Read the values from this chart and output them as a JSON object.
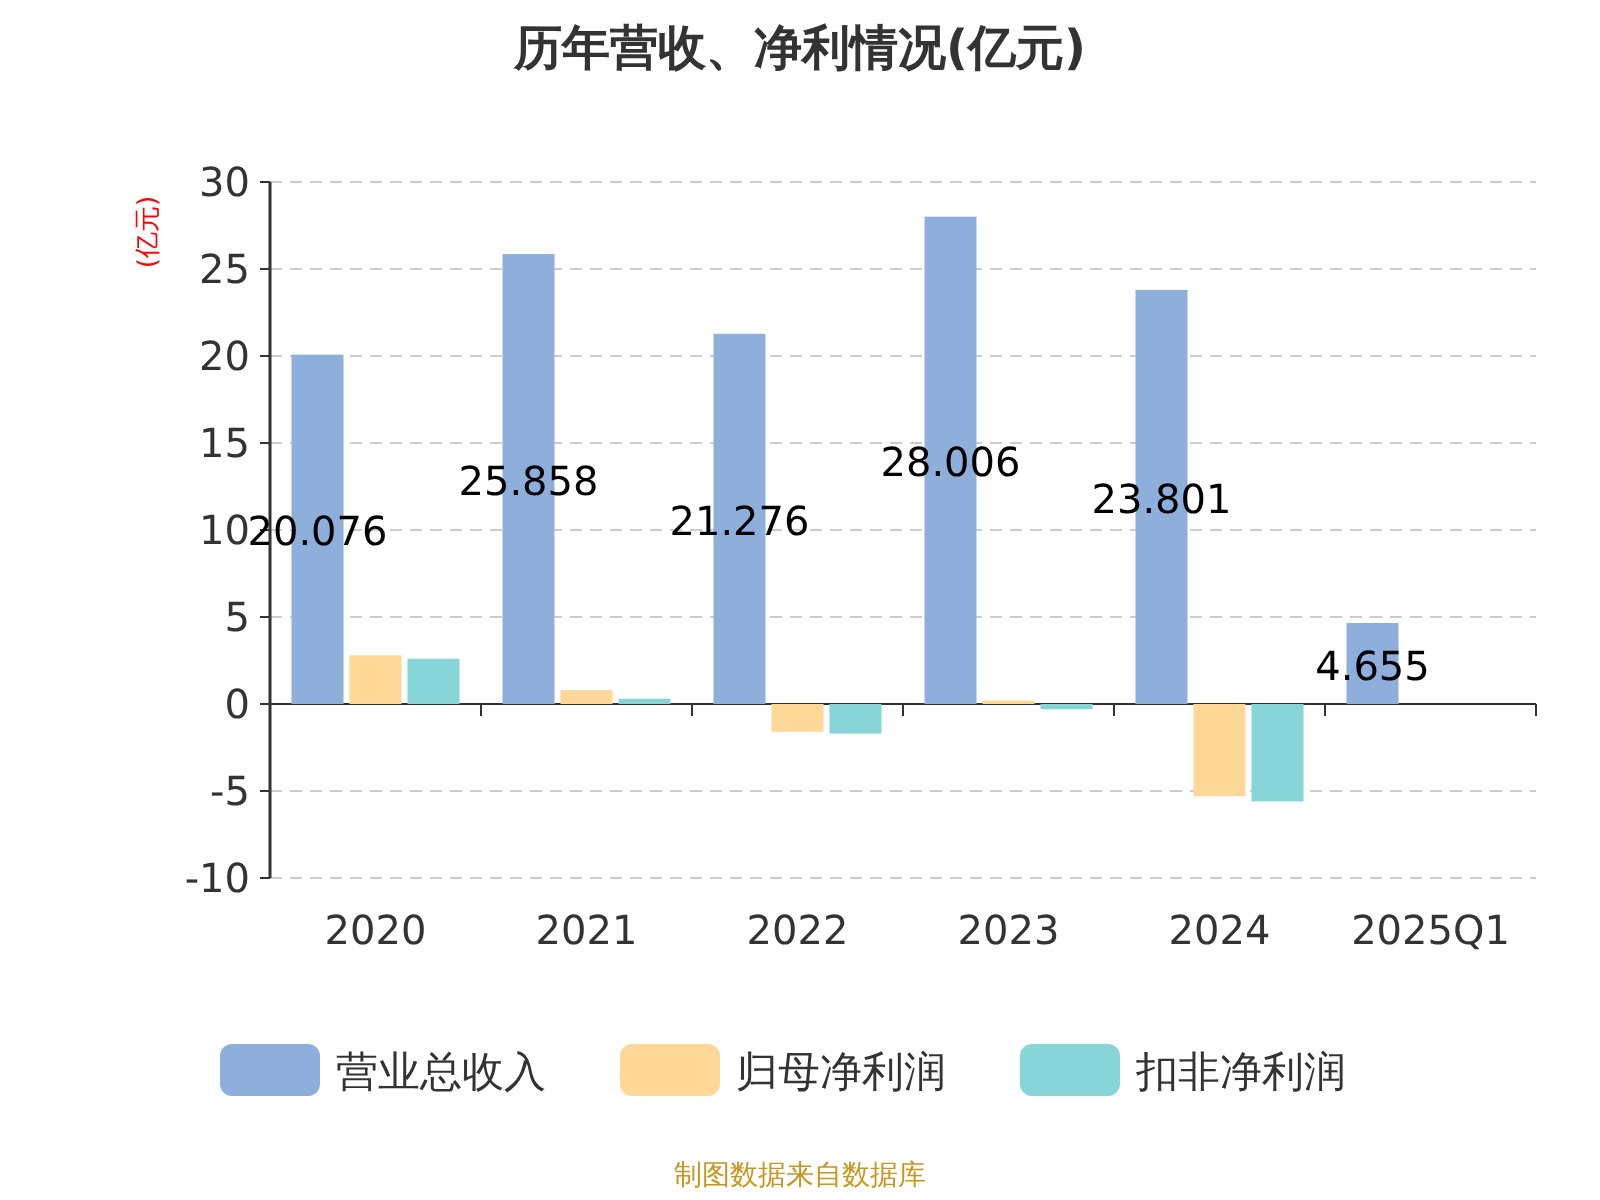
{
  "chart_data": {
    "type": "bar",
    "title": "历年营收、净利情况(亿元)",
    "ylabel": "(亿元)",
    "categories": [
      "2020",
      "2021",
      "2022",
      "2023",
      "2024",
      "2025Q1"
    ],
    "series": [
      {
        "name": "营业总收入",
        "color": "#8eaedb",
        "values": [
          20.076,
          25.858,
          21.276,
          28.006,
          23.801,
          4.655
        ],
        "value_labels": [
          "20.076",
          "25.858",
          "21.276",
          "28.006",
          "23.801",
          "4.655"
        ]
      },
      {
        "name": "归母净利润",
        "color": "#ffd898",
        "values": [
          2.8,
          0.8,
          -1.6,
          0.2,
          -5.3,
          null
        ]
      },
      {
        "name": "扣非净利润",
        "color": "#86d5d9",
        "values": [
          2.6,
          0.3,
          -1.7,
          -0.3,
          -5.6,
          null
        ]
      }
    ],
    "ylim": [
      -10,
      30
    ],
    "yticks": [
      -10,
      -5,
      0,
      5,
      10,
      15,
      20,
      25,
      30
    ],
    "grid": "y",
    "legend": "bottom",
    "annotations": [
      "制图数据来自数据库"
    ]
  }
}
